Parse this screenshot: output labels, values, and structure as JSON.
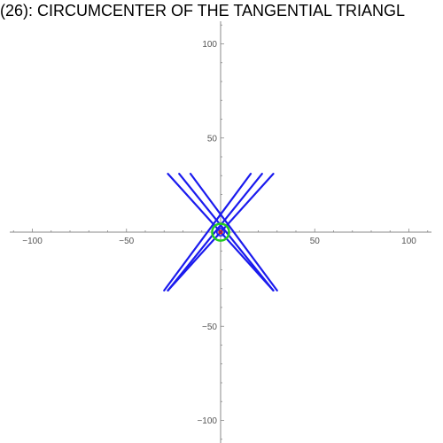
{
  "chart_data": {
    "type": "line",
    "title": "(26): CIRCUMCENTER OF THE TANGENTIAL TRIANGL",
    "xlabel": "",
    "ylabel": "",
    "xlim": [
      -112,
      112
    ],
    "ylim": [
      -112,
      112
    ],
    "grid": false,
    "x_ticks": [
      {
        "value": -100,
        "label": "−100"
      },
      {
        "value": -50,
        "label": "−50"
      },
      {
        "value": 50,
        "label": "50"
      },
      {
        "value": 100,
        "label": "100"
      }
    ],
    "y_ticks": [
      {
        "value": -100,
        "label": "−100"
      },
      {
        "value": -50,
        "label": "−50"
      },
      {
        "value": 50,
        "label": "50"
      },
      {
        "value": 100,
        "label": "100"
      }
    ],
    "minor_tick_step": 10,
    "series": [
      {
        "color": "#1a1aee",
        "x": [
          -28,
          28
        ],
        "y": [
          31,
          -31
        ]
      },
      {
        "color": "#1a1aee",
        "x": [
          -22,
          28
        ],
        "y": [
          31,
          -31
        ]
      },
      {
        "color": "#1a1aee",
        "x": [
          -28,
          28
        ],
        "y": [
          -31,
          31
        ]
      },
      {
        "color": "#1a1aee",
        "x": [
          -28,
          22
        ],
        "y": [
          -31,
          31
        ]
      },
      {
        "color": "#1a1aee",
        "x": [
          -16,
          30
        ],
        "y": [
          31,
          -31
        ]
      },
      {
        "color": "#1a1aee",
        "x": [
          -30,
          16
        ],
        "y": [
          -31,
          31
        ]
      }
    ],
    "circles": [
      {
        "color": "#22cc22",
        "cx": 0,
        "cy": 0,
        "r": 4.5
      },
      {
        "color": "#1a1aee",
        "cx": 0,
        "cy": 0,
        "r": 2
      },
      {
        "color": "#cc2222",
        "cx": 0,
        "cy": 0,
        "r": 0.8
      }
    ]
  }
}
